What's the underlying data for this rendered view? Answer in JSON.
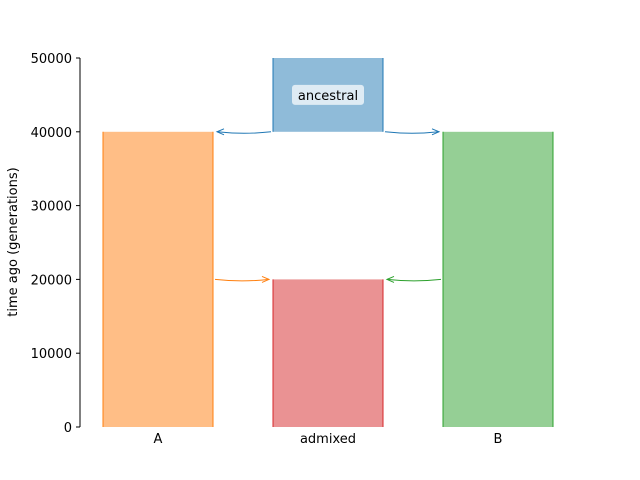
{
  "chart_data": {
    "type": "demography",
    "ylabel": "time ago (generations)",
    "ylim": [
      0,
      50000
    ],
    "yticks": [
      "0",
      "10000",
      "20000",
      "30000",
      "40000",
      "50000"
    ],
    "populations": [
      {
        "id": "A",
        "label": "A",
        "column": 0,
        "start_time": 0,
        "end_time": 40000,
        "fill": "#ffbe86",
        "edge": "#ff7f0e",
        "label_position": "axis"
      },
      {
        "id": "admixed",
        "label": "admixed",
        "column": 1,
        "start_time": 0,
        "end_time": 20000,
        "fill": "#ea9293",
        "edge": "#d62728",
        "label_position": "axis"
      },
      {
        "id": "B",
        "label": "B",
        "column": 2,
        "start_time": 0,
        "end_time": 40000,
        "fill": "#95cf95",
        "edge": "#2ca02c",
        "label_position": "axis"
      },
      {
        "id": "ancestral",
        "label": "ancestral",
        "column": 1,
        "start_time": 40000,
        "end_time": 50000,
        "fill": "#8fbbd9",
        "edge": "#1f77b4",
        "label_position": "box"
      }
    ],
    "migrations": [
      {
        "from": "ancestral",
        "to": "A",
        "time": 40000,
        "color": "#1f77b4"
      },
      {
        "from": "ancestral",
        "to": "B",
        "time": 40000,
        "color": "#1f77b4"
      },
      {
        "from": "A",
        "to": "admixed",
        "time": 20000,
        "color": "#ff7f0e"
      },
      {
        "from": "B",
        "to": "admixed",
        "time": 20000,
        "color": "#2ca02c"
      }
    ]
  }
}
